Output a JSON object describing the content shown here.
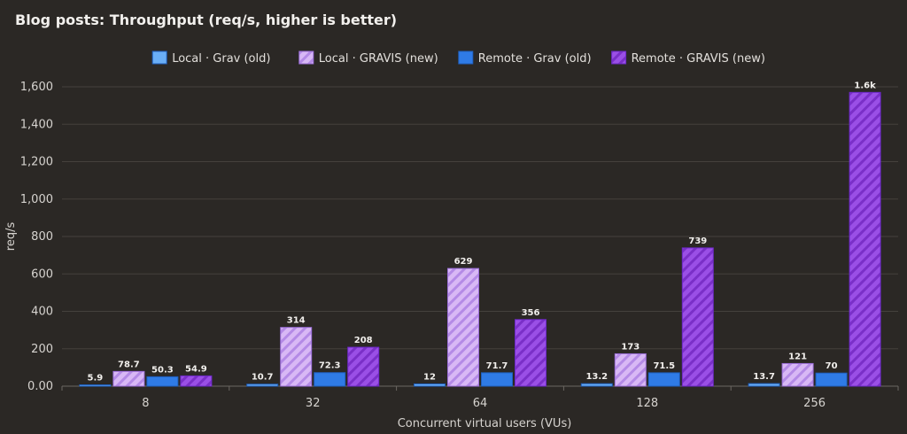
{
  "chart_data": {
    "type": "bar",
    "title": "Blog posts: Throughput (req/s, higher is better)",
    "xlabel": "Concurrent virtual users (VUs)",
    "ylabel": "req/s",
    "categories": [
      "8",
      "32",
      "64",
      "128",
      "256"
    ],
    "ylim": [
      0,
      1600
    ],
    "yticks": [
      0,
      200,
      400,
      600,
      800,
      1000,
      1200,
      1400,
      1600
    ],
    "ytick_labels": [
      "0.00",
      "200",
      "400",
      "600",
      "800",
      "1,000",
      "1,200",
      "1,400",
      "1,600"
    ],
    "grid": true,
    "legend_position": "top-center",
    "series": [
      {
        "name": "Local · Grav (old)",
        "color": "#6aaef5",
        "pattern": "solid",
        "values": [
          5.9,
          10.7,
          12,
          13.2,
          13.7
        ],
        "labels": [
          "5.9",
          "10.7",
          "12",
          "13.2",
          "13.7"
        ]
      },
      {
        "name": "Local · GRAVIS (new)",
        "color": "#d8b8f5",
        "pattern": "hatched",
        "values": [
          78.7,
          314,
          629,
          173,
          121
        ],
        "labels": [
          "78.7",
          "314",
          "629",
          "173",
          "121"
        ]
      },
      {
        "name": "Remote · Grav (old)",
        "color": "#2f7be6",
        "pattern": "solid",
        "values": [
          50.3,
          72.3,
          71.7,
          71.5,
          70
        ],
        "labels": [
          "50.3",
          "72.3",
          "71.7",
          "71.5",
          "70"
        ]
      },
      {
        "name": "Remote · GRAVIS (new)",
        "color": "#9a4fe6",
        "pattern": "hatched",
        "values": [
          54.9,
          208,
          356,
          739,
          1570
        ],
        "labels": [
          "54.9",
          "208",
          "356",
          "739",
          "1.6k"
        ]
      }
    ]
  }
}
